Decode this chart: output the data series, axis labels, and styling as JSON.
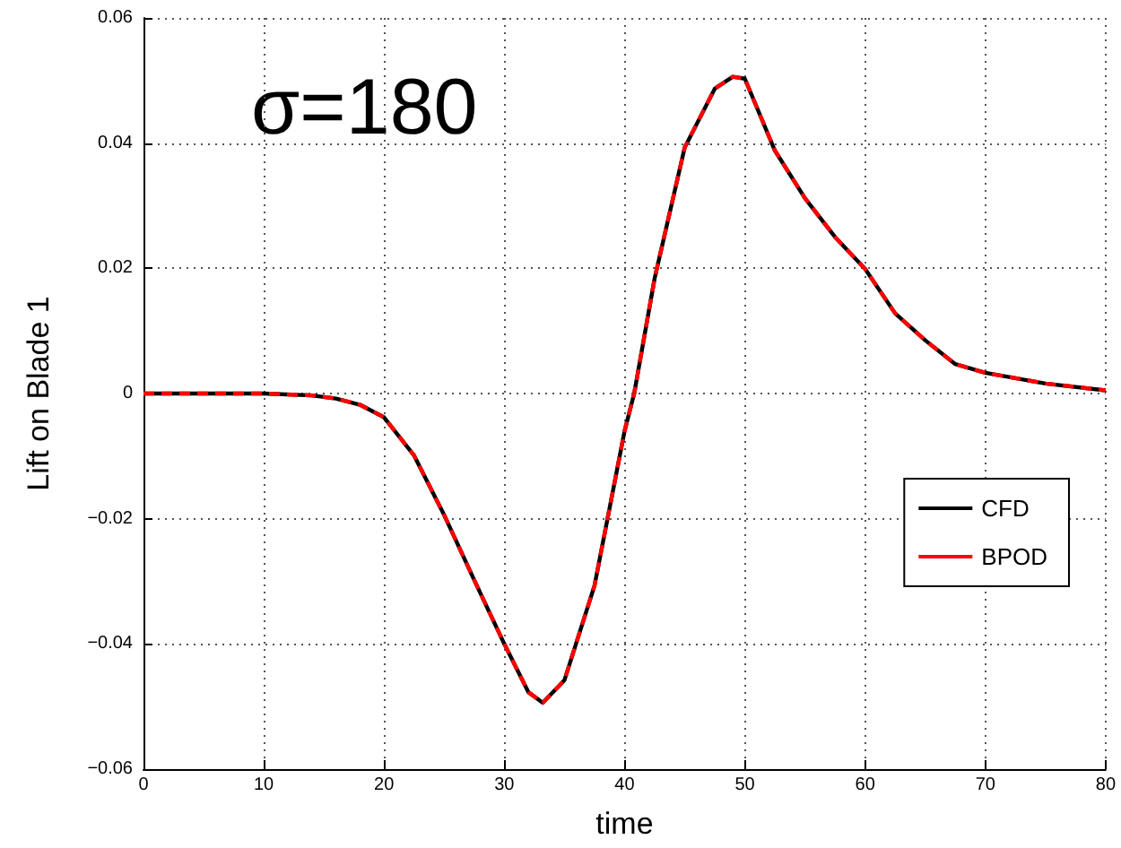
{
  "chart_data": {
    "type": "line",
    "xlabel": "time",
    "ylabel": "Lift on Blade 1",
    "annotations": [
      "σ=180"
    ],
    "x": [
      0,
      5,
      10,
      14,
      16,
      18,
      20,
      22.5,
      25,
      27.5,
      30,
      32,
      33.2,
      35,
      37.5,
      40,
      40.8,
      42.5,
      45,
      47.5,
      49,
      50,
      52.5,
      55,
      57.5,
      60,
      62.5,
      65,
      67.5,
      70,
      75,
      80
    ],
    "series": [
      {
        "name": "CFD",
        "color": "#000000",
        "line_style": "solid",
        "values": [
          0,
          0,
          0,
          -0.0003,
          -0.0008,
          -0.0018,
          -0.0038,
          -0.0099,
          -0.0194,
          -0.0298,
          -0.04,
          -0.0477,
          -0.0494,
          -0.0458,
          -0.0307,
          -0.006,
          0,
          0.0184,
          0.0393,
          0.0487,
          0.0506,
          0.0503,
          0.0388,
          0.0312,
          0.025,
          0.0199,
          0.0128,
          0.0085,
          0.0047,
          0.0033,
          0.0016,
          0.0005
        ]
      },
      {
        "name": "BPOD",
        "color": "#ff0000",
        "line_style": "dashed",
        "values": [
          0,
          0,
          0,
          -0.0003,
          -0.0008,
          -0.0018,
          -0.0038,
          -0.0099,
          -0.0194,
          -0.0298,
          -0.04,
          -0.0477,
          -0.0494,
          -0.0458,
          -0.0307,
          -0.006,
          0,
          0.0184,
          0.0393,
          0.0487,
          0.0506,
          0.0503,
          0.0388,
          0.0312,
          0.025,
          0.0199,
          0.0128,
          0.0085,
          0.0047,
          0.0033,
          0.0016,
          0.0005
        ]
      }
    ],
    "xlim": [
      0,
      80
    ],
    "xticks": [
      0,
      10,
      20,
      30,
      40,
      50,
      60,
      70,
      80
    ],
    "ylim": [
      -0.06,
      0.06
    ],
    "yticks": [
      -0.06,
      -0.04,
      -0.02,
      0,
      0.02,
      0.04,
      0.06
    ],
    "grid": true,
    "legend": "bottom right",
    "marker": "none"
  }
}
